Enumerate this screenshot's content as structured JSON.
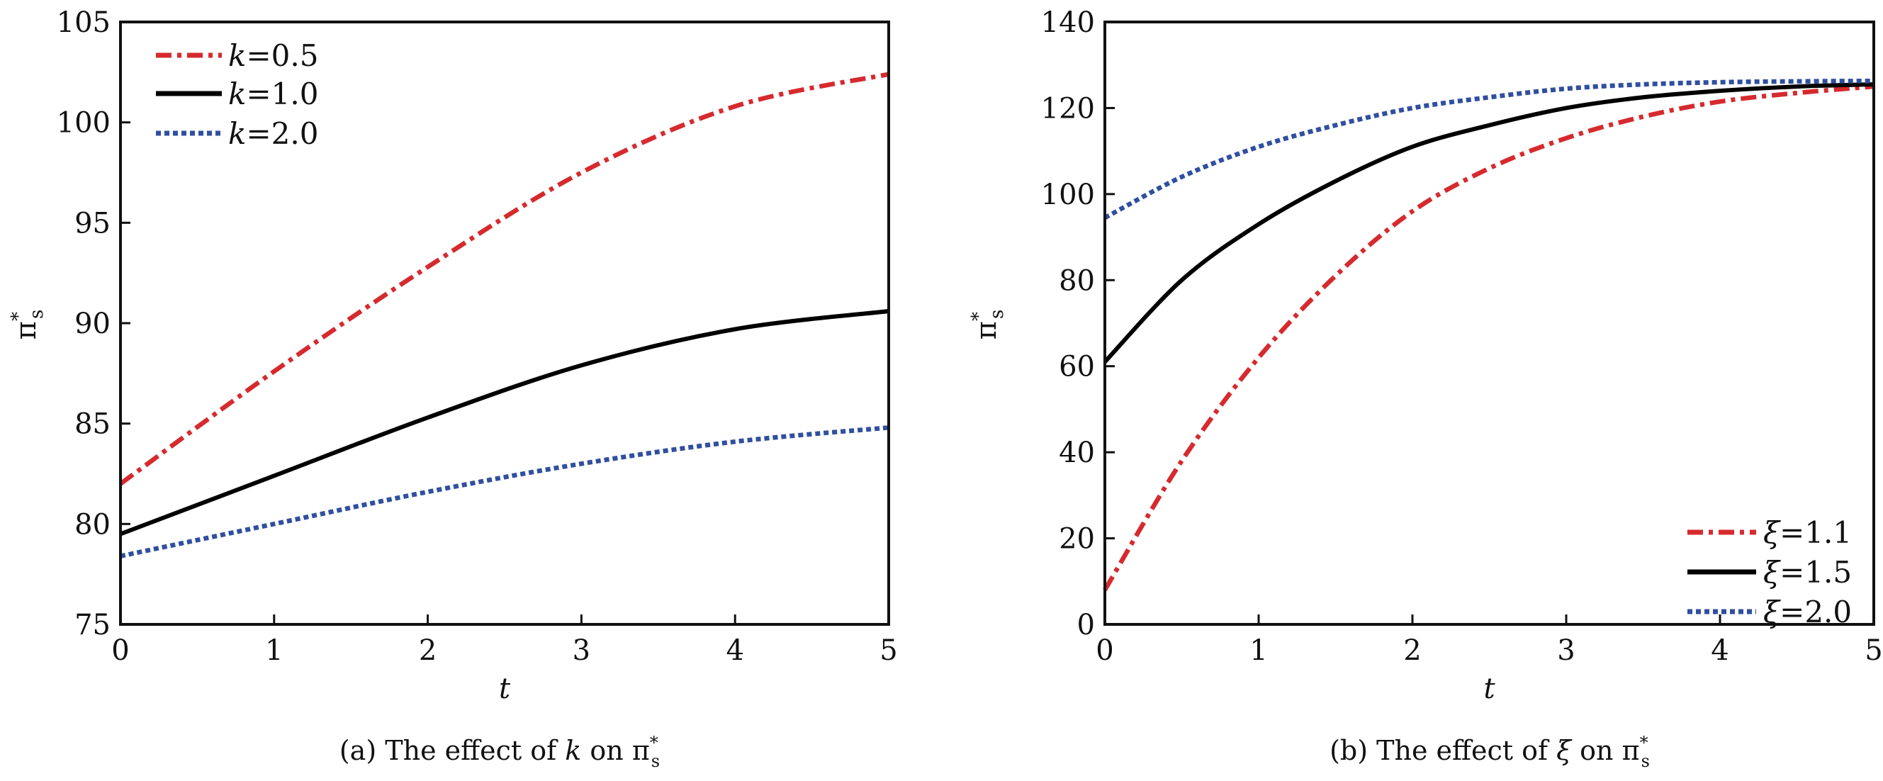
{
  "chart_data": [
    {
      "type": "line",
      "panel": "a",
      "caption": {
        "prefix": "(a) The effect of ",
        "symbol": "k",
        "middle": " on ",
        "target": "π",
        "sup": "*",
        "sub": "s"
      },
      "xlabel": "t",
      "ylabel": {
        "main": "π",
        "sup": "*",
        "sub": "s"
      },
      "xlim": [
        0,
        5
      ],
      "ylim": [
        75,
        105
      ],
      "xticks": [
        "0",
        "1",
        "2",
        "3",
        "4",
        "5"
      ],
      "yticks": [
        "75",
        "80",
        "85",
        "90",
        "95",
        "100",
        "105"
      ],
      "legend_position": "top-left",
      "x": [
        0,
        1,
        2,
        3,
        4,
        5
      ],
      "series": [
        {
          "name": "k=0.5",
          "symbol": "k",
          "value": "=0.5",
          "color": "#d62a2e",
          "style": "dashdot",
          "values": [
            82.0,
            87.6,
            92.8,
            97.5,
            100.8,
            102.4
          ]
        },
        {
          "name": "k=1.0",
          "symbol": "k",
          "value": "=1.0",
          "color": "#000000",
          "style": "solid",
          "values": [
            79.5,
            82.4,
            85.3,
            87.9,
            89.7,
            90.6
          ]
        },
        {
          "name": "k=2.0",
          "symbol": "k",
          "value": "=2.0",
          "color": "#2f4fa0",
          "style": "dotted",
          "values": [
            78.4,
            80.0,
            81.6,
            83.0,
            84.1,
            84.8
          ]
        }
      ]
    },
    {
      "type": "line",
      "panel": "b",
      "caption": {
        "prefix": "(b) The effect of ",
        "symbol": "ξ",
        "middle": " on ",
        "target": "π",
        "sup": "*",
        "sub": "s"
      },
      "xlabel": "t",
      "ylabel": {
        "main": "π",
        "sup": "*",
        "sub": "s"
      },
      "xlim": [
        0,
        5
      ],
      "ylim": [
        0,
        140
      ],
      "xticks": [
        "0",
        "1",
        "2",
        "3",
        "4",
        "5"
      ],
      "yticks": [
        "0",
        "20",
        "40",
        "60",
        "80",
        "100",
        "120",
        "140"
      ],
      "legend_position": "bottom-right",
      "x": [
        0,
        0.5,
        1,
        1.5,
        2,
        2.5,
        3,
        3.5,
        4,
        4.5,
        5
      ],
      "series": [
        {
          "name": "ξ=1.1",
          "symbol": "ξ",
          "value": "=1.1",
          "color": "#d62a2e",
          "style": "dashdot",
          "values": [
            8,
            38,
            62,
            81,
            96,
            106,
            113,
            118,
            121.5,
            123.5,
            125
          ]
        },
        {
          "name": "ξ=1.5",
          "symbol": "ξ",
          "value": "=1.5",
          "color": "#000000",
          "style": "solid",
          "values": [
            61,
            80,
            93,
            103,
            111,
            116,
            120,
            122.5,
            124,
            125,
            125.5
          ]
        },
        {
          "name": "ξ=2.0",
          "symbol": "ξ",
          "value": "=2.0",
          "color": "#2f4fa0",
          "style": "dotted",
          "values": [
            94.5,
            104,
            111,
            116,
            120,
            122.5,
            124.5,
            125.5,
            126,
            126.2,
            126.3
          ]
        }
      ]
    }
  ]
}
